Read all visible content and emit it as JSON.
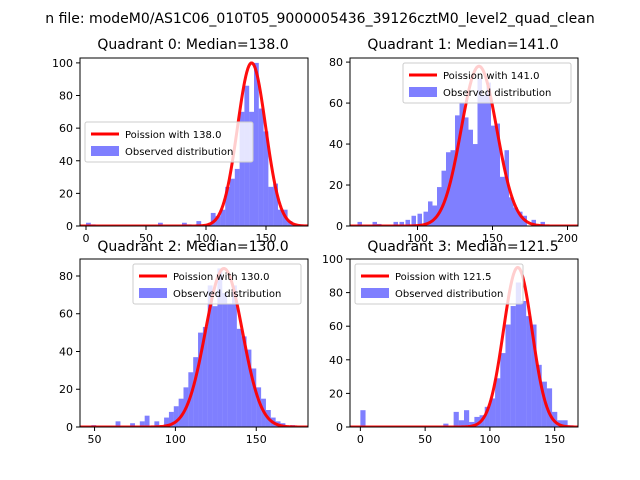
{
  "figure": {
    "suptitle": "n file: modeM0/AS1C06_010T05_9000005436_39126cztM0_level2_quad_clean"
  },
  "chart_data": [
    {
      "type": "bar",
      "quadrant": 0,
      "title": "Quadrant 0: Median=138.0",
      "xlim": [
        -5,
        185
      ],
      "ylim": [
        0,
        103
      ],
      "xticks": [
        0,
        50,
        100,
        150
      ],
      "yticks": [
        0,
        20,
        40,
        60,
        80,
        100
      ],
      "bin_width": 4,
      "legend": {
        "loc": "center-left",
        "entries": [
          "Poission with 138.0",
          "Observed distribution"
        ]
      },
      "series": [
        {
          "name": "Poission with 138.0",
          "kind": "line",
          "color": "#ff0000",
          "mu": 138.0,
          "scale": 100
        },
        {
          "name": "Observed distribution",
          "kind": "hist",
          "color": "#0000ff",
          "alpha": 0.5,
          "bins": [
            [
              0,
              2
            ],
            [
              4,
              1
            ],
            [
              60,
              2
            ],
            [
              80,
              2
            ],
            [
              84,
              1
            ],
            [
              92,
              3
            ],
            [
              100,
              1
            ],
            [
              104,
              8
            ],
            [
              108,
              6
            ],
            [
              112,
              10
            ],
            [
              116,
              24
            ],
            [
              120,
              29
            ],
            [
              124,
              35
            ],
            [
              128,
              70
            ],
            [
              132,
              86
            ],
            [
              136,
              70
            ],
            [
              140,
              100
            ],
            [
              144,
              72
            ],
            [
              148,
              58
            ],
            [
              152,
              24
            ],
            [
              156,
              26
            ],
            [
              160,
              10
            ],
            [
              164,
              10
            ],
            [
              168,
              3
            ],
            [
              172,
              1
            ],
            [
              176,
              1
            ]
          ]
        }
      ]
    },
    {
      "type": "bar",
      "quadrant": 1,
      "title": "Quadrant 1: Median=141.0",
      "xlim": [
        55,
        207
      ],
      "ylim": [
        0,
        82
      ],
      "xticks": [
        100,
        150,
        200
      ],
      "yticks": [
        0,
        20,
        40,
        60,
        80
      ],
      "bin_width": 3,
      "legend": {
        "loc": "top-right",
        "entries": [
          "Poission with 141.0",
          "Observed distribution"
        ]
      },
      "series": [
        {
          "name": "Poission with 141.0",
          "kind": "line",
          "color": "#ff0000",
          "mu": 141.0,
          "scale": 78
        },
        {
          "name": "Observed distribution",
          "kind": "hist",
          "color": "#0000ff",
          "alpha": 0.5,
          "bins": [
            [
              60,
              2
            ],
            [
              70,
              2
            ],
            [
              73,
              1
            ],
            [
              84,
              2
            ],
            [
              88,
              2
            ],
            [
              92,
              3
            ],
            [
              96,
              5
            ],
            [
              100,
              6
            ],
            [
              104,
              7
            ],
            [
              107,
              12
            ],
            [
              110,
              10
            ],
            [
              113,
              19
            ],
            [
              116,
              27
            ],
            [
              119,
              36
            ],
            [
              122,
              37
            ],
            [
              125,
              54
            ],
            [
              128,
              60
            ],
            [
              131,
              53
            ],
            [
              134,
              47
            ],
            [
              137,
              40
            ],
            [
              140,
              72
            ],
            [
              143,
              64
            ],
            [
              146,
              70
            ],
            [
              149,
              49
            ],
            [
              152,
              50
            ],
            [
              155,
              24
            ],
            [
              158,
              37
            ],
            [
              161,
              14
            ],
            [
              164,
              9
            ],
            [
              167,
              7
            ],
            [
              170,
              5
            ],
            [
              176,
              3
            ],
            [
              182,
              2
            ]
          ]
        }
      ]
    },
    {
      "type": "bar",
      "quadrant": 2,
      "title": "Quadrant 2: Median=130.0",
      "xlim": [
        41,
        182
      ],
      "ylim": [
        0,
        89
      ],
      "xticks": [
        50,
        100,
        150
      ],
      "yticks": [
        0,
        20,
        40,
        60,
        80
      ],
      "bin_width": 3,
      "legend": {
        "loc": "top-right",
        "entries": [
          "Poission with 130.0",
          "Observed distribution"
        ]
      },
      "series": [
        {
          "name": "Poission with 130.0",
          "kind": "line",
          "color": "#ff0000",
          "mu": 130.0,
          "scale": 84
        },
        {
          "name": "Observed distribution",
          "kind": "hist",
          "color": "#0000ff",
          "alpha": 0.5,
          "bins": [
            [
              48,
              1
            ],
            [
              63,
              3
            ],
            [
              72,
              2
            ],
            [
              78,
              3
            ],
            [
              81,
              6
            ],
            [
              87,
              3
            ],
            [
              93,
              5
            ],
            [
              96,
              8
            ],
            [
              99,
              11
            ],
            [
              102,
              15
            ],
            [
              105,
              21
            ],
            [
              108,
              29
            ],
            [
              111,
              37
            ],
            [
              114,
              50
            ],
            [
              117,
              53
            ],
            [
              120,
              75
            ],
            [
              123,
              64
            ],
            [
              126,
              84
            ],
            [
              129,
              71
            ],
            [
              132,
              65
            ],
            [
              135,
              75
            ],
            [
              138,
              52
            ],
            [
              141,
              48
            ],
            [
              144,
              41
            ],
            [
              147,
              31
            ],
            [
              150,
              21
            ],
            [
              153,
              15
            ],
            [
              156,
              9
            ],
            [
              159,
              5
            ],
            [
              162,
              3
            ],
            [
              165,
              2
            ],
            [
              171,
              1
            ]
          ]
        }
      ]
    },
    {
      "type": "bar",
      "quadrant": 3,
      "title": "Quadrant 3: Median=121.5",
      "xlim": [
        -8,
        168
      ],
      "ylim": [
        0,
        100
      ],
      "xticks": [
        0,
        50,
        100,
        150
      ],
      "yticks": [
        0,
        20,
        40,
        60,
        80,
        100
      ],
      "bin_width": 4,
      "legend": {
        "loc": "top-left",
        "entries": [
          "Poission with 121.5",
          "Observed distribution"
        ]
      },
      "series": [
        {
          "name": "Poission with 121.5",
          "kind": "line",
          "color": "#ff0000",
          "mu": 121.5,
          "scale": 95
        },
        {
          "name": "Observed distribution",
          "kind": "hist",
          "color": "#0000ff",
          "alpha": 0.5,
          "bins": [
            [
              0,
              10
            ],
            [
              64,
              2
            ],
            [
              72,
              9
            ],
            [
              76,
              4
            ],
            [
              80,
              10
            ],
            [
              84,
              3
            ],
            [
              88,
              6
            ],
            [
              92,
              7
            ],
            [
              96,
              12
            ],
            [
              100,
              17
            ],
            [
              104,
              29
            ],
            [
              108,
              44
            ],
            [
              112,
              61
            ],
            [
              116,
              72
            ],
            [
              120,
              86
            ],
            [
              124,
              75
            ],
            [
              128,
              66
            ],
            [
              132,
              61
            ],
            [
              136,
              37
            ],
            [
              140,
              27
            ],
            [
              144,
              23
            ],
            [
              148,
              9
            ],
            [
              152,
              4
            ],
            [
              156,
              4
            ],
            [
              160,
              1
            ]
          ]
        }
      ]
    }
  ]
}
